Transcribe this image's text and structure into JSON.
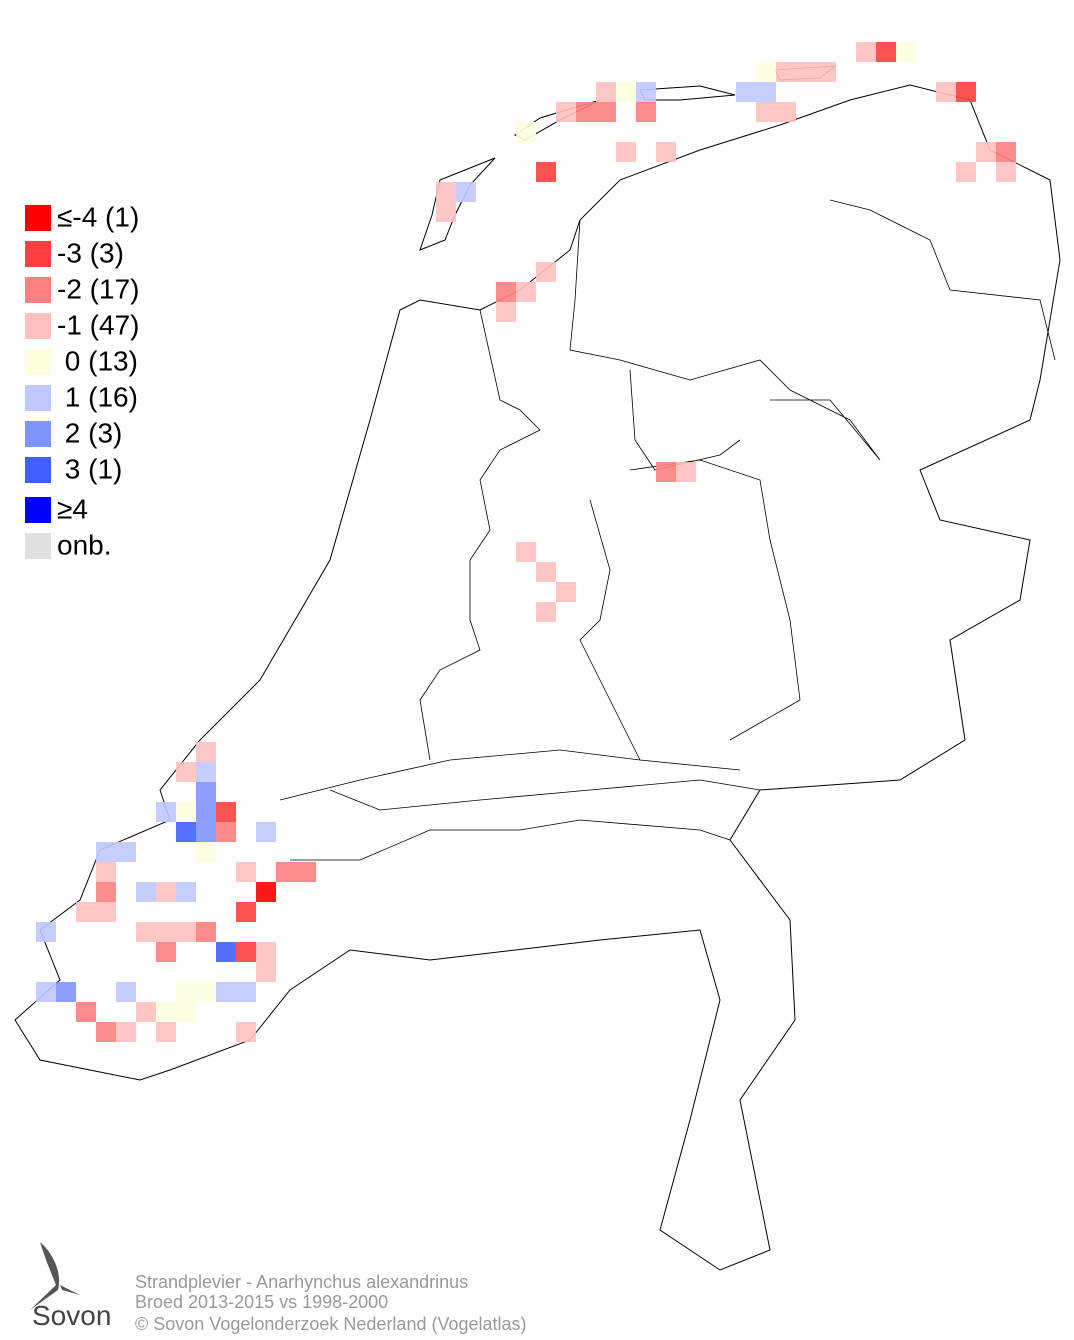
{
  "legend": {
    "items": [
      {
        "label": "≤-4 (1)",
        "color": "#ff0000"
      },
      {
        "label": "-3 (3)",
        "color": "#ff4040"
      },
      {
        "label": "-2 (17)",
        "color": "#ff8080"
      },
      {
        "label": "-1 (47)",
        "color": "#ffc0c0"
      },
      {
        "label": " 0 (13)",
        "color": "#ffffe0"
      },
      {
        "label": " 1 (16)",
        "color": "#c0c8ff"
      },
      {
        "label": " 2 (3)",
        "color": "#8094ff"
      },
      {
        "label": " 3 (1)",
        "color": "#4060ff"
      },
      {
        "label": "≥4",
        "color": "#0000ff"
      },
      {
        "label": "onb.",
        "color": "#e0e0e0"
      }
    ]
  },
  "footer": {
    "lines": [
      "Strandplevier - Anarhynchus alexandrinus",
      "Broed 2013-2015 vs 1998-2000",
      "© Sovon Vogelonderzoek Nederland (Vogelatlas)"
    ]
  },
  "logo": {
    "text": "Sovon"
  }
}
